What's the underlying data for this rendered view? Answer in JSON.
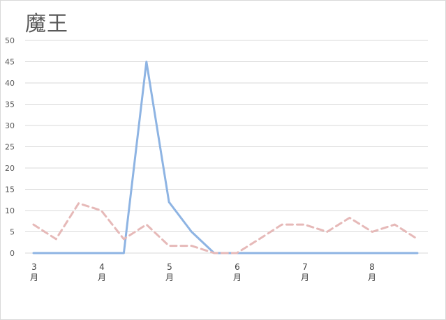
{
  "chart_data": {
    "type": "line",
    "title": "魔王",
    "xlabel": "",
    "ylabel": "",
    "ylim": [
      0,
      50
    ],
    "yticks": [
      "0",
      "5",
      "10",
      "15",
      "20",
      "25",
      "30",
      "35",
      "40",
      "45",
      "50"
    ],
    "month_labels": [
      {
        "num": "3",
        "unit": "月"
      },
      {
        "num": "4",
        "unit": "月"
      },
      {
        "num": "5",
        "unit": "月"
      },
      {
        "num": "6",
        "unit": "月"
      },
      {
        "num": "7",
        "unit": "月"
      },
      {
        "num": "8",
        "unit": "月"
      }
    ],
    "grid": true,
    "legend": "none",
    "series": [
      {
        "color": "#8eb4e3",
        "style": "solid",
        "values": [
          0,
          0,
          0,
          0,
          0,
          45,
          12,
          5,
          0,
          0,
          0,
          0,
          0,
          0,
          0,
          0,
          0,
          0
        ]
      },
      {
        "color": "#e6b9b8",
        "style": "dashed",
        "values": [
          6.7,
          3.3,
          11.7,
          10,
          3.3,
          6.7,
          1.7,
          1.7,
          0,
          0,
          3.3,
          6.7,
          6.7,
          5,
          8.3,
          5,
          6.7,
          3.3
        ]
      }
    ]
  }
}
